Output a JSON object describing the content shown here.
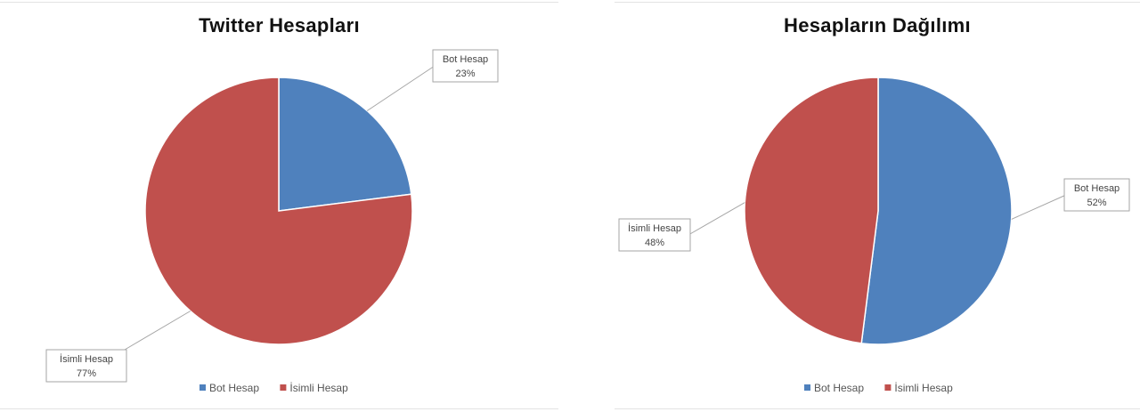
{
  "colors": {
    "bot": "#4f81bd",
    "named": "#c0504d"
  },
  "chart_data": [
    {
      "type": "pie",
      "title": "Twitter Hesapları",
      "categories": [
        "Bot Hesap",
        "İsimli Hesap"
      ],
      "values": [
        23,
        77
      ],
      "data_labels": [
        {
          "name": "Bot Hesap",
          "value": "23%"
        },
        {
          "name": "İsimli Hesap",
          "value": "77%"
        }
      ],
      "legend": [
        "Bot Hesap",
        "İsimli Hesap"
      ],
      "legend_position": "bottom"
    },
    {
      "type": "pie",
      "title": "Hesapların Dağılımı",
      "categories": [
        "Bot Hesap",
        "İsimli Hesap"
      ],
      "values": [
        52,
        48
      ],
      "data_labels": [
        {
          "name": "Bot Hesap",
          "value": "52%"
        },
        {
          "name": "İsimli Hesap",
          "value": "48%"
        }
      ],
      "legend": [
        "Bot Hesap",
        "İsimli Hesap"
      ],
      "legend_position": "bottom"
    }
  ]
}
